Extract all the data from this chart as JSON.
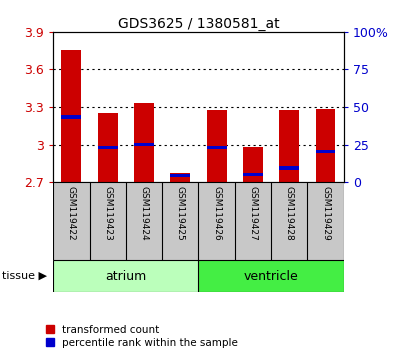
{
  "title": "GDS3625 / 1380581_at",
  "samples": [
    "GSM119422",
    "GSM119423",
    "GSM119424",
    "GSM119425",
    "GSM119426",
    "GSM119427",
    "GSM119428",
    "GSM119429"
  ],
  "red_top": [
    3.755,
    3.255,
    3.335,
    2.775,
    3.275,
    2.985,
    3.275,
    3.285
  ],
  "red_bottom": [
    2.7,
    2.7,
    2.7,
    2.7,
    2.7,
    2.7,
    2.7,
    2.7
  ],
  "blue_values": [
    3.22,
    2.975,
    3.0,
    2.755,
    2.975,
    2.765,
    2.815,
    2.945
  ],
  "ylim_left": [
    2.7,
    3.9
  ],
  "ylim_right": [
    0,
    100
  ],
  "yticks_left": [
    2.7,
    3.0,
    3.3,
    3.6,
    3.9
  ],
  "yticks_right": [
    0,
    25,
    50,
    75,
    100
  ],
  "ytick_labels_right": [
    "0",
    "25",
    "50",
    "75",
    "100%"
  ],
  "bar_color": "#CC0000",
  "blue_color": "#0000CC",
  "bg_color": "#FFFFFF",
  "sample_bg": "#C8C8C8",
  "atrium_color": "#BBFFBB",
  "ventricle_color": "#44EE44",
  "legend_red": "transformed count",
  "legend_blue": "percentile rank within the sample",
  "tissue_label": "tissue"
}
